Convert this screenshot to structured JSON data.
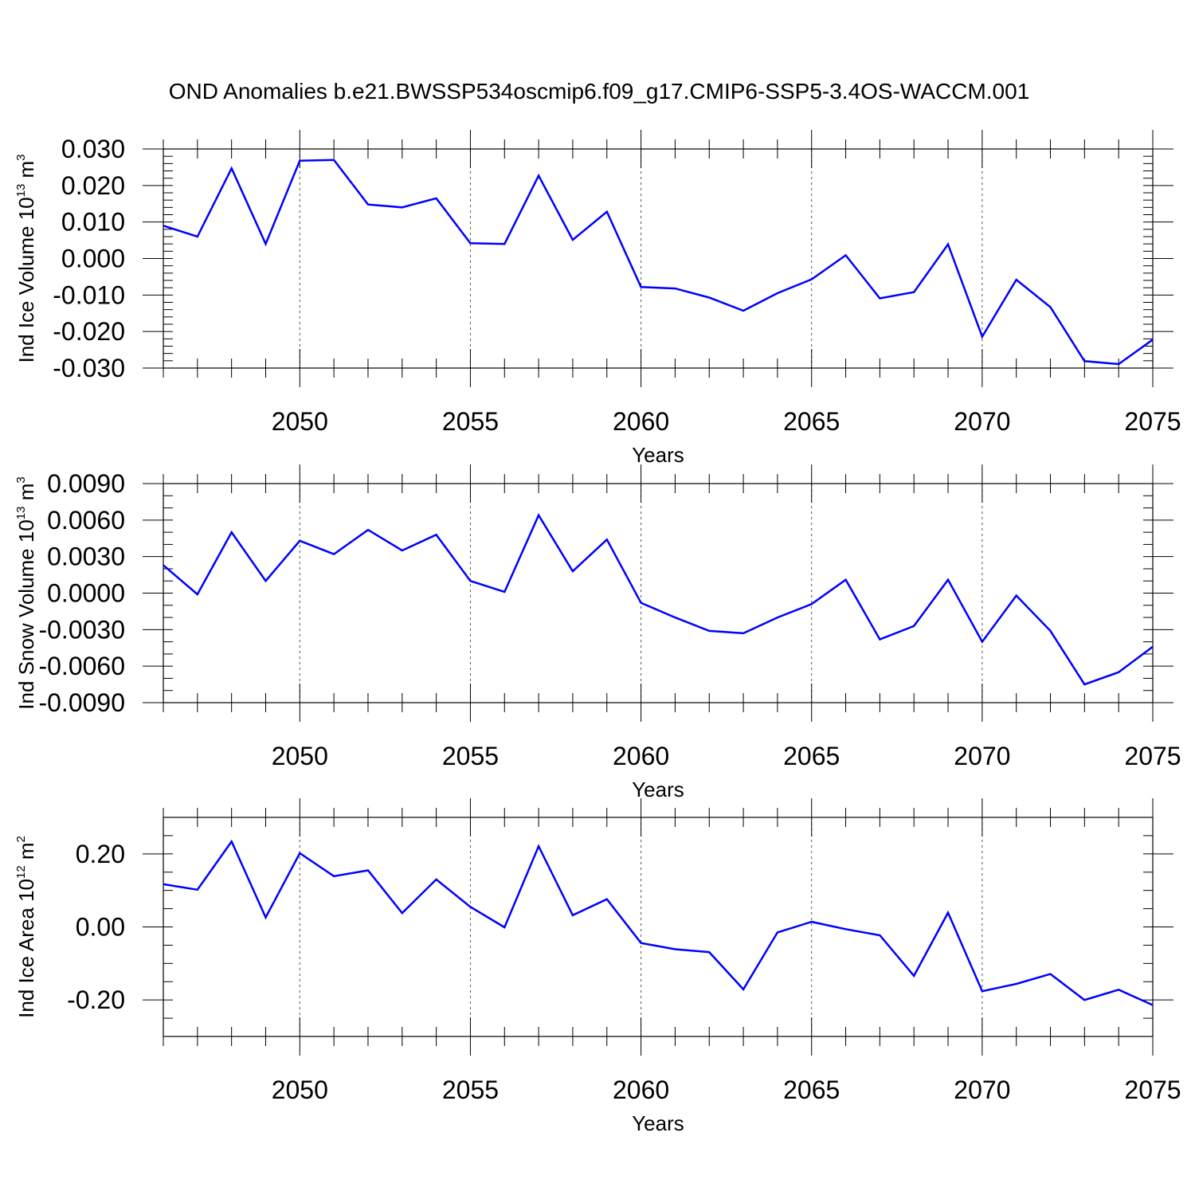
{
  "figure": {
    "title": "OND Anomalies b.e21.BWSSP534oscmip6.f09_g17.CMIP6-SSP5-3.4OS-WACCM.001"
  },
  "chart_data": [
    {
      "type": "line",
      "ylabel_main": "Ind Ice Volume 10",
      "ylabel_exp": "13",
      "ylabel_unit": "m",
      "ylabel_unit_exp": "3",
      "xlabel": "Years",
      "xlim": [
        2046,
        2075
      ],
      "ylim": [
        -0.03,
        0.03
      ],
      "y_ticks": [
        0.03,
        0.02,
        0.01,
        0.0,
        -0.01,
        -0.02,
        -0.03
      ],
      "y_tick_labels": [
        "0.030",
        "0.020",
        "0.010",
        "0.000",
        "-0.010",
        "-0.020",
        "-0.030"
      ],
      "y_minor_step": 0.002,
      "x_ticks": [
        2050,
        2055,
        2060,
        2065,
        2070,
        2075
      ],
      "x_tick_labels": [
        "2050",
        "2055",
        "2060",
        "2065",
        "2070",
        "2075"
      ],
      "grid_x": true,
      "color": "#0000ff",
      "x": [
        2046,
        2047,
        2048,
        2049,
        2050,
        2051,
        2052,
        2053,
        2054,
        2055,
        2056,
        2057,
        2058,
        2059,
        2060,
        2061,
        2062,
        2063,
        2064,
        2065,
        2066,
        2067,
        2068,
        2069,
        2070,
        2071,
        2072,
        2073,
        2074,
        2075
      ],
      "values": [
        0.009,
        0.006,
        0.0247,
        0.004,
        0.0268,
        0.027,
        0.0148,
        0.014,
        0.0165,
        0.0042,
        0.004,
        0.0227,
        0.0051,
        0.0128,
        -0.0078,
        -0.0082,
        -0.0107,
        -0.0143,
        -0.0095,
        -0.0057,
        0.0009,
        -0.0109,
        -0.0092,
        0.0039,
        -0.0214,
        -0.0058,
        -0.0133,
        -0.0281,
        -0.0289,
        -0.0222
      ]
    },
    {
      "type": "line",
      "ylabel_main": "Ind Snow Volume 10",
      "ylabel_exp": "13",
      "ylabel_unit": "m",
      "ylabel_unit_exp": "3",
      "xlabel": "Years",
      "xlim": [
        2046,
        2075
      ],
      "ylim": [
        -0.009,
        0.009
      ],
      "y_ticks": [
        0.009,
        0.006,
        0.003,
        0.0,
        -0.003,
        -0.006,
        -0.009
      ],
      "y_tick_labels": [
        "0.0090",
        "0.0060",
        "0.0030",
        "0.0000",
        "-0.0030",
        "-0.0060",
        "-0.0090"
      ],
      "y_minor_step": 0.001,
      "x_ticks": [
        2050,
        2055,
        2060,
        2065,
        2070,
        2075
      ],
      "x_tick_labels": [
        "2050",
        "2055",
        "2060",
        "2065",
        "2070",
        "2075"
      ],
      "grid_x": true,
      "color": "#0000ff",
      "x": [
        2046,
        2047,
        2048,
        2049,
        2050,
        2051,
        2052,
        2053,
        2054,
        2055,
        2056,
        2057,
        2058,
        2059,
        2060,
        2061,
        2062,
        2063,
        2064,
        2065,
        2066,
        2067,
        2068,
        2069,
        2070,
        2071,
        2072,
        2073,
        2074,
        2075
      ],
      "values": [
        0.0023,
        -0.0001,
        0.005,
        0.001,
        0.0043,
        0.0032,
        0.0052,
        0.0035,
        0.0048,
        0.001,
        0.0001,
        0.0064,
        0.0018,
        0.0044,
        -0.0008,
        -0.002,
        -0.0031,
        -0.0033,
        -0.002,
        -0.0009,
        0.0011,
        -0.0038,
        -0.0027,
        0.0011,
        -0.004,
        -0.0002,
        -0.0031,
        -0.0075,
        -0.0065,
        -0.0044
      ]
    },
    {
      "type": "line",
      "ylabel_main": "Ind Ice Area 10",
      "ylabel_exp": "12",
      "ylabel_unit": "m",
      "ylabel_unit_exp": "2",
      "xlabel": "Years",
      "xlim": [
        2046,
        2075
      ],
      "ylim": [
        -0.3,
        0.3
      ],
      "y_ticks": [
        0.2,
        0.0,
        -0.2
      ],
      "y_tick_labels": [
        "0.20",
        "0.00",
        "-0.20"
      ],
      "y_minor_step": 0.05,
      "x_ticks": [
        2050,
        2055,
        2060,
        2065,
        2070,
        2075
      ],
      "x_tick_labels": [
        "2050",
        "2055",
        "2060",
        "2065",
        "2070",
        "2075"
      ],
      "grid_x": true,
      "color": "#0000ff",
      "x": [
        2046,
        2047,
        2048,
        2049,
        2050,
        2051,
        2052,
        2053,
        2054,
        2055,
        2056,
        2057,
        2058,
        2059,
        2060,
        2061,
        2062,
        2063,
        2064,
        2065,
        2066,
        2067,
        2068,
        2069,
        2070,
        2071,
        2072,
        2073,
        2074,
        2075
      ],
      "values": [
        0.117,
        0.102,
        0.234,
        0.026,
        0.202,
        0.139,
        0.155,
        0.038,
        0.13,
        0.055,
        -0.001,
        0.221,
        0.032,
        0.076,
        -0.044,
        -0.061,
        -0.069,
        -0.171,
        -0.015,
        0.014,
        -0.006,
        -0.023,
        -0.134,
        0.039,
        -0.176,
        -0.156,
        -0.129,
        -0.2,
        -0.172,
        -0.214
      ]
    }
  ]
}
